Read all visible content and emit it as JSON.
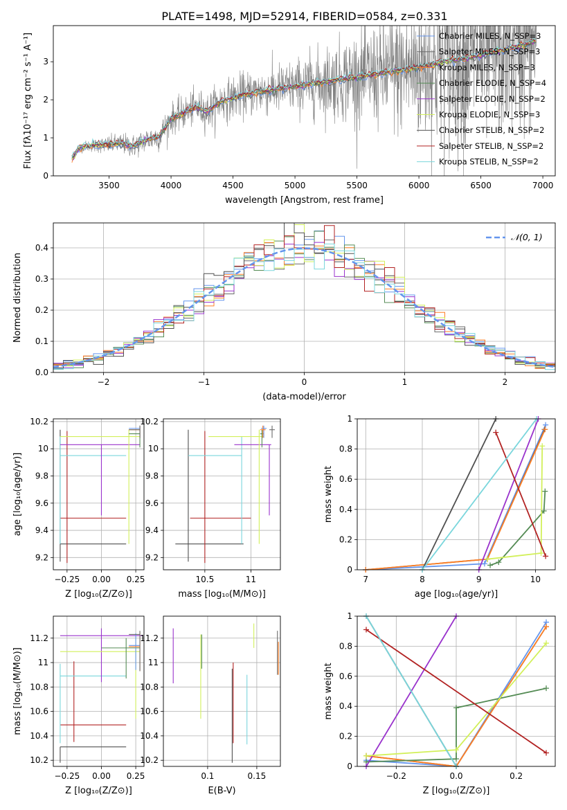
{
  "figure_title": "PLATE=1498, MJD=52914, FIBERID=0584, z=0.331",
  "colors": {
    "ch_miles": "#6495ed",
    "sa_miles": "#696969",
    "kr_miles": "#ff7f24",
    "ch_elodie": "#548b54",
    "sa_elodie": "#9932cc",
    "kr_elodie": "#d2f05a",
    "ch_stelib": "#4f4f4f",
    "sa_stelib": "#b22222",
    "kr_stelib": "#7ad6dc",
    "spectrum": "#808080",
    "gauss": "#6495ed",
    "grid": "#b0b0b0"
  },
  "chart_data": [
    {
      "id": "spectrum",
      "type": "line",
      "xlabel": "wavelength [Angstrom, rest frame]",
      "ylabel": "Flux [fλ10⁻¹⁷ erg cm⁻² s⁻¹ A⁻¹]",
      "xlim": [
        3050,
        7100
      ],
      "ylim": [
        0,
        3.95
      ],
      "xticks": [
        3500,
        4000,
        4500,
        5000,
        5500,
        6000,
        6500,
        7000
      ],
      "yticks": [
        0,
        1,
        2,
        3
      ],
      "grid": false,
      "legend_position": "upper right",
      "legend": [
        "Chabrier MILES, N_SSP=3",
        "Salpeter MILES, N_SSP=3",
        "Kroupa MILES, N_SSP=3",
        "Chabrier ELODIE, N_SSP=4",
        "Salpeter ELODIE, N_SSP=2",
        "Kroupa ELODIE, N_SSP=3",
        "Chabrier STELIB, N_SSP=2",
        "Salpeter STELIB, N_SSP=2",
        "Kroupa STELIB, N_SSP=2"
      ],
      "legend_colors": [
        "ch_miles",
        "sa_miles",
        "kr_miles",
        "ch_elodie",
        "sa_elodie",
        "kr_elodie",
        "ch_stelib",
        "sa_stelib",
        "kr_stelib"
      ],
      "model_continuum": {
        "x": [
          3200,
          3250,
          3300,
          3400,
          3500,
          3600,
          3700,
          3800,
          3900,
          4000,
          4100,
          4200,
          4300,
          4400,
          4500,
          4600,
          4700,
          4800,
          4900,
          5000,
          5200,
          5400,
          5600,
          5800,
          6000,
          6200,
          6400,
          6600,
          6800,
          6950
        ],
        "y": [
          0.45,
          0.7,
          0.78,
          0.8,
          0.82,
          0.85,
          0.78,
          0.95,
          1.02,
          1.5,
          1.65,
          1.8,
          1.7,
          1.95,
          2.05,
          2.15,
          2.2,
          2.25,
          2.3,
          2.35,
          2.45,
          2.55,
          2.65,
          2.75,
          2.85,
          3.0,
          3.1,
          3.25,
          3.4,
          3.55
        ]
      },
      "data_noise_sigma": {
        "x": [
          3200,
          3500,
          4000,
          5000,
          5700,
          6200,
          6950
        ],
        "y": [
          0.04,
          0.12,
          0.2,
          0.35,
          0.7,
          1.2,
          1.1
        ]
      }
    },
    {
      "id": "residuals",
      "type": "histogram",
      "xlabel": "(data-model)/error",
      "ylabel": "Normed distribution",
      "xlim": [
        -2.5,
        2.5
      ],
      "ylim": [
        0,
        0.48
      ],
      "xticks": [
        -2,
        -1,
        0,
        1,
        2
      ],
      "xticklabels": [
        "−2",
        "−1",
        "0",
        "1",
        "2"
      ],
      "yticks": [
        0.0,
        0.1,
        0.2,
        0.3,
        0.4
      ],
      "yticklabels": [
        "0.0",
        "0.1",
        "0.2",
        "0.3",
        "0.4"
      ],
      "grid": true,
      "legend_position": "upper right",
      "legend": [
        "𝒩(0, 1)"
      ],
      "bins": 50,
      "gaussian": {
        "mu": 0,
        "sigma": 1
      }
    },
    {
      "id": "age_Z",
      "type": "errorbar",
      "xlabel": "Z [log₁₀(Z/Z⊙)]",
      "ylabel": "age  [log₁₀(age/yr)]",
      "xlim": [
        -0.35,
        0.31
      ],
      "ylim": [
        9.11,
        10.22
      ],
      "xticks": [
        -0.25,
        0.0,
        0.25
      ],
      "xticklabels": [
        "−0.25",
        "0.00",
        "0.25"
      ],
      "yticks": [
        9.2,
        9.4,
        9.6,
        9.8,
        10.0,
        10.2
      ],
      "grid": true,
      "points": [
        {
          "c": "ch_stelib",
          "x": -0.3,
          "y": 9.3,
          "xlo": 0.0,
          "xhi": 0.48,
          "ylo": 0.13,
          "yhi": 0.84
        },
        {
          "c": "sa_stelib",
          "x": -0.25,
          "y": 9.49,
          "xlo": 0.05,
          "xhi": 0.43,
          "ylo": 0.33,
          "yhi": 0.64
        },
        {
          "c": "kr_stelib",
          "x": -0.3,
          "y": 9.95,
          "xlo": 0.0,
          "xhi": 0.48,
          "ylo": 0.65,
          "yhi": 0.14
        },
        {
          "c": "sa_elodie",
          "x": 0.0,
          "y": 10.03,
          "xlo": 0.3,
          "xhi": 0.28,
          "ylo": 0.52,
          "yhi": 0.0
        },
        {
          "c": "kr_elodie",
          "x": 0.2,
          "y": 10.09,
          "xlo": 0.5,
          "xhi": 0.08,
          "ylo": 0.79,
          "yhi": 0.05
        },
        {
          "c": "ch_elodie",
          "x": 0.28,
          "y": 10.11,
          "xlo": 0.08,
          "xhi": 0.0,
          "ylo": 0.1,
          "yhi": 0.03
        },
        {
          "c": "ch_miles",
          "x": 0.28,
          "y": 10.15,
          "xlo": 0.08,
          "xhi": 0.0,
          "ylo": 0.07,
          "yhi": 0.02
        },
        {
          "c": "kr_miles",
          "x": 0.28,
          "y": 10.14,
          "xlo": 0.08,
          "xhi": 0.0,
          "ylo": 0.06,
          "yhi": 0.03
        },
        {
          "c": "sa_miles",
          "x": 0.28,
          "y": 10.14,
          "xlo": 0.08,
          "xhi": 0.0,
          "ylo": 0.06,
          "yhi": 0.03
        }
      ]
    },
    {
      "id": "age_mass",
      "type": "errorbar",
      "xlabel": "mass [log₁₀(M/M⊙)]",
      "ylabel": "",
      "xlim": [
        10.05,
        11.32
      ],
      "ylim": [
        9.11,
        10.22
      ],
      "xticks": [
        10.5,
        11.0
      ],
      "yticks": [
        9.2,
        9.4,
        9.6,
        9.8,
        10.0,
        10.2
      ],
      "grid": true,
      "points": [
        {
          "c": "ch_stelib",
          "x": 10.32,
          "y": 9.3,
          "xlo": 0.14,
          "xhi": 0.6,
          "ylo": 0.13,
          "yhi": 0.84
        },
        {
          "c": "sa_stelib",
          "x": 10.5,
          "y": 9.49,
          "xlo": 0.16,
          "xhi": 0.5,
          "ylo": 0.33,
          "yhi": 0.64
        },
        {
          "c": "kr_stelib",
          "x": 10.9,
          "y": 9.95,
          "xlo": 0.58,
          "xhi": 0.0,
          "ylo": 0.65,
          "yhi": 0.14
        },
        {
          "c": "sa_elodie",
          "x": 11.2,
          "y": 10.03,
          "xlo": 0.38,
          "xhi": 0.02,
          "ylo": 0.52,
          "yhi": 0.0
        },
        {
          "c": "kr_elodie",
          "x": 11.09,
          "y": 10.09,
          "xlo": 0.55,
          "xhi": 0.05,
          "ylo": 0.79,
          "yhi": 0.05
        },
        {
          "c": "ch_elodie",
          "x": 11.12,
          "y": 10.11,
          "xlo": 0.02,
          "xhi": 0.02,
          "ylo": 0.1,
          "yhi": 0.03
        },
        {
          "c": "ch_miles",
          "x": 11.14,
          "y": 10.15,
          "xlo": 0.03,
          "xhi": 0.03,
          "ylo": 0.07,
          "yhi": 0.02
        },
        {
          "c": "kr_miles",
          "x": 11.13,
          "y": 10.14,
          "xlo": 0.03,
          "xhi": 0.03,
          "ylo": 0.06,
          "yhi": 0.03
        },
        {
          "c": "sa_miles",
          "x": 11.23,
          "y": 10.14,
          "xlo": 0.03,
          "xhi": 0.03,
          "ylo": 0.06,
          "yhi": 0.03
        }
      ]
    },
    {
      "id": "weight_age",
      "type": "line",
      "xlabel": "age  [log₁₀(age/yr)]",
      "ylabel": "mass weight",
      "xlim": [
        6.85,
        10.35
      ],
      "ylim": [
        0,
        1
      ],
      "xticks": [
        7,
        8,
        9,
        10
      ],
      "yticks": [
        0.0,
        0.2,
        0.4,
        0.6,
        0.8,
        1.0
      ],
      "grid": true,
      "series": [
        {
          "c": "ch_miles",
          "x": [
            7.0,
            9.1,
            10.18
          ],
          "y": [
            0.0,
            0.04,
            0.96
          ]
        },
        {
          "c": "sa_miles",
          "x": [
            7.0,
            9.15,
            10.16
          ],
          "y": [
            0.0,
            0.07,
            0.93
          ]
        },
        {
          "c": "kr_miles",
          "x": [
            7.0,
            9.15,
            10.17
          ],
          "y": [
            0.0,
            0.07,
            0.93
          ]
        },
        {
          "c": "ch_elodie",
          "x": [
            9.2,
            9.35,
            10.15,
            10.17
          ],
          "y": [
            0.03,
            0.05,
            0.39,
            0.52
          ]
        },
        {
          "c": "sa_elodie",
          "x": [
            9.0,
            10.05
          ],
          "y": [
            0.0,
            1.0
          ]
        },
        {
          "c": "kr_elodie",
          "x": [
            9.15,
            10.1,
            10.12
          ],
          "y": [
            0.07,
            0.11,
            0.82
          ]
        },
        {
          "c": "ch_stelib",
          "x": [
            8.0,
            9.3
          ],
          "y": [
            0.0,
            1.0
          ]
        },
        {
          "c": "sa_stelib",
          "x": [
            9.3,
            10.18
          ],
          "y": [
            0.91,
            0.09
          ]
        },
        {
          "c": "kr_stelib",
          "x": [
            8.0,
            10.02
          ],
          "y": [
            0.0,
            1.0
          ]
        }
      ]
    },
    {
      "id": "mass_Z",
      "type": "errorbar",
      "xlabel": "Z [log₁₀(Z/Z⊙)]",
      "ylabel": "mass [log₁₀(M/M⊙)]",
      "xlim": [
        -0.35,
        0.31
      ],
      "ylim": [
        10.15,
        11.38
      ],
      "xticks": [
        -0.25,
        0.0,
        0.25
      ],
      "xticklabels": [
        "−0.25",
        "0.00",
        "0.25"
      ],
      "yticks": [
        10.2,
        10.4,
        10.6,
        10.8,
        11.0,
        11.2
      ],
      "grid": true,
      "points": [
        {
          "c": "ch_stelib",
          "x": -0.3,
          "y": 10.31,
          "xlo": 0.0,
          "xhi": 0.48,
          "ylo": 0.13,
          "yhi": 0.0
        },
        {
          "c": "sa_stelib",
          "x": -0.2,
          "y": 10.49,
          "xlo": 0.1,
          "xhi": 0.38,
          "ylo": 0.14,
          "yhi": 0.52
        },
        {
          "c": "kr_stelib",
          "x": -0.3,
          "y": 10.89,
          "xlo": 0.0,
          "xhi": 0.48,
          "ylo": 0.55,
          "yhi": 0.1
        },
        {
          "c": "sa_elodie",
          "x": 0.0,
          "y": 11.22,
          "xlo": 0.3,
          "xhi": 0.3,
          "ylo": 0.38,
          "yhi": 0.06
        },
        {
          "c": "kr_elodie",
          "x": 0.25,
          "y": 11.09,
          "xlo": 0.55,
          "xhi": 0.03,
          "ylo": 0.55,
          "yhi": 0.12
        },
        {
          "c": "ch_elodie",
          "x": 0.18,
          "y": 11.12,
          "xlo": 0.18,
          "xhi": 0.1,
          "ylo": 0.25,
          "yhi": 0.08
        },
        {
          "c": "ch_miles",
          "x": 0.25,
          "y": 11.14,
          "xlo": 0.05,
          "xhi": 0.03,
          "ylo": 0.2,
          "yhi": 0.1
        },
        {
          "c": "kr_miles",
          "x": 0.28,
          "y": 11.13,
          "xlo": 0.08,
          "xhi": 0.0,
          "ylo": 0.2,
          "yhi": 0.12
        },
        {
          "c": "sa_miles",
          "x": 0.28,
          "y": 11.23,
          "xlo": 0.08,
          "xhi": 0.0,
          "ylo": 0.3,
          "yhi": 0.03
        }
      ]
    },
    {
      "id": "mass_ebv",
      "type": "errorbar",
      "xlabel": "E(B-V)",
      "ylabel": "",
      "xlim": [
        0.055,
        0.174
      ],
      "ylim": [
        10.15,
        11.38
      ],
      "xticks": [
        0.1,
        0.15
      ],
      "yticks": [
        10.2,
        10.4,
        10.6,
        10.8,
        11.0,
        11.2
      ],
      "grid": true,
      "points": [
        {
          "c": "ch_stelib",
          "x": 0.125,
          "y": 10.5,
          "xlo": 0,
          "xhi": 0,
          "ylo": 0.32,
          "yhi": 0.45
        },
        {
          "c": "sa_stelib",
          "x": 0.126,
          "y": 10.6,
          "xlo": 0,
          "xhi": 0,
          "ylo": 0.26,
          "yhi": 0.4
        },
        {
          "c": "kr_stelib",
          "x": 0.14,
          "y": 10.8,
          "xlo": 0,
          "xhi": 0,
          "ylo": 0.47,
          "yhi": 0.1
        },
        {
          "c": "sa_elodie",
          "x": 0.065,
          "y": 11.05,
          "xlo": 0,
          "xhi": 0,
          "ylo": 0.22,
          "yhi": 0.23
        },
        {
          "c": "kr_elodie",
          "x": 0.093,
          "y": 10.9,
          "xlo": 0,
          "xhi": 0,
          "ylo": 0.36,
          "yhi": 0.33
        },
        {
          "c": "ch_elodie",
          "x": 0.094,
          "y": 11.1,
          "xlo": 0,
          "xhi": 0,
          "ylo": 0.15,
          "yhi": 0.13
        },
        {
          "c": "sa_miles",
          "x": 0.171,
          "y": 11.15,
          "xlo": 0,
          "xhi": 0,
          "ylo": 0.25,
          "yhi": 0.11
        },
        {
          "c": "kr_miles",
          "x": 0.172,
          "y": 11.0,
          "xlo": 0,
          "xhi": 0,
          "ylo": 0.1,
          "yhi": 0.17
        },
        {
          "c": "kr_elodie",
          "x": 0.147,
          "y": 11.2,
          "xlo": 0,
          "xhi": 0,
          "ylo": 0.08,
          "yhi": 0.12
        }
      ]
    },
    {
      "id": "weight_Z",
      "type": "line",
      "xlabel": "Z [log₁₀(Z/Z⊙)]",
      "ylabel": "mass weight",
      "xlim": [
        -0.33,
        0.33
      ],
      "ylim": [
        0,
        1
      ],
      "xticks": [
        -0.2,
        0.0,
        0.2
      ],
      "xticklabels": [
        "−0.2",
        "0.0",
        "0.2"
      ],
      "yticks": [
        0.0,
        0.2,
        0.4,
        0.6,
        0.8,
        1.0
      ],
      "grid": true,
      "series": [
        {
          "c": "ch_miles",
          "x": [
            -0.3,
            0.0,
            0.3
          ],
          "y": [
            0.04,
            0.0,
            0.96
          ]
        },
        {
          "c": "sa_miles",
          "x": [
            -0.3,
            0.0,
            0.3
          ],
          "y": [
            0.07,
            0.0,
            0.93
          ]
        },
        {
          "c": "kr_miles",
          "x": [
            -0.3,
            0.0,
            0.3
          ],
          "y": [
            0.07,
            0.0,
            0.93
          ]
        },
        {
          "c": "ch_elodie",
          "x": [
            -0.3,
            0.0,
            0.0,
            0.3
          ],
          "y": [
            0.03,
            0.05,
            0.39,
            0.52
          ]
        },
        {
          "c": "sa_elodie",
          "x": [
            -0.3,
            0.0
          ],
          "y": [
            0.0,
            1.0
          ]
        },
        {
          "c": "kr_elodie",
          "x": [
            -0.3,
            0.0,
            0.3
          ],
          "y": [
            0.07,
            0.11,
            0.82
          ]
        },
        {
          "c": "ch_stelib",
          "x": [
            -0.3,
            0.0
          ],
          "y": [
            1.0,
            0.0
          ]
        },
        {
          "c": "sa_stelib",
          "x": [
            -0.3,
            0.3
          ],
          "y": [
            0.91,
            0.09
          ]
        },
        {
          "c": "kr_stelib",
          "x": [
            -0.3,
            0.0
          ],
          "y": [
            1.0,
            0.0
          ]
        }
      ]
    }
  ]
}
